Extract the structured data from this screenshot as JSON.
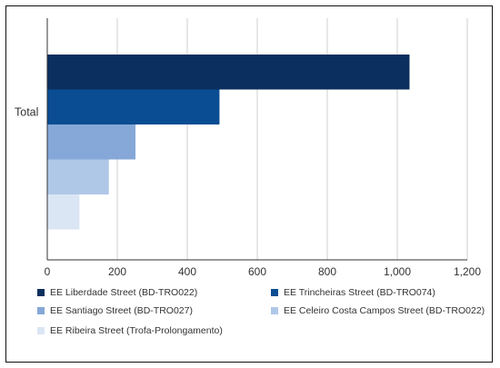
{
  "chart_data": {
    "type": "bar",
    "orientation": "horizontal",
    "categories": [
      "Total"
    ],
    "series": [
      {
        "name": "EE Liberdade Street (BD-TRO022)",
        "values": [
          1035
        ],
        "color": "#0b2f5e"
      },
      {
        "name": "EE Trincheiras Street (BD-TRO074)",
        "values": [
          492
        ],
        "color": "#0a4d92"
      },
      {
        "name": "EE Santiago Street (BD-TRO027)",
        "values": [
          252
        ],
        "color": "#85a8d8"
      },
      {
        "name": "EE Celeiro Costa Campos Street (BD-TRO022)",
        "values": [
          176
        ],
        "color": "#b0c8e8"
      },
      {
        "name": "EE Ribeira Street (Trofa-Prolongamento)",
        "values": [
          92
        ],
        "color": "#dbe6f4"
      }
    ],
    "x_ticks": [
      "0",
      "200",
      "400",
      "600",
      "800",
      "1,000",
      "1,200"
    ],
    "xlim": [
      0,
      1200
    ],
    "grid": "vertical",
    "legend_position": "bottom",
    "title": "",
    "xlabel": "",
    "ylabel": ""
  }
}
